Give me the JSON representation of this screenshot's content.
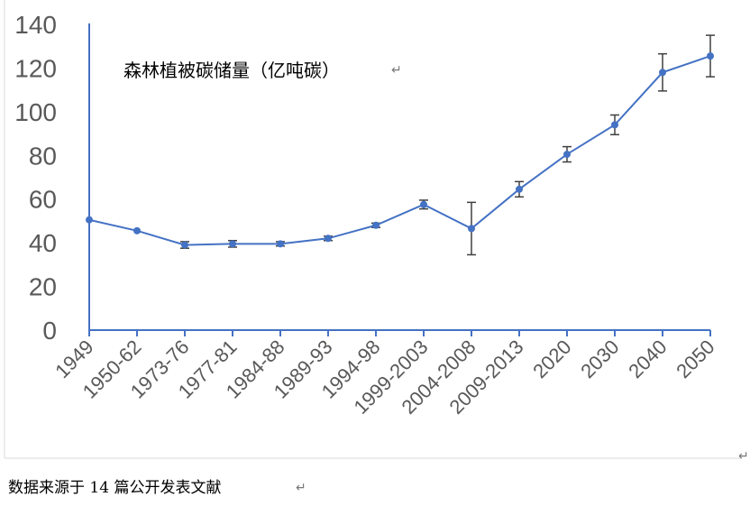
{
  "chart_data": {
    "type": "line",
    "title": "",
    "annotation": "森林植被碳储量（亿吨碳）",
    "xlabel": "",
    "ylabel": "",
    "ylim": [
      0,
      140
    ],
    "yticks": [
      0,
      20,
      40,
      60,
      80,
      100,
      120,
      140
    ],
    "categories": [
      "1949",
      "1950-62",
      "1973-76",
      "1977-81",
      "1984-88",
      "1989-93",
      "1994-98",
      "1999-2003",
      "2004-2008",
      "2009-2013",
      "2020",
      "2030",
      "2040",
      "2050"
    ],
    "series": [
      {
        "values": [
          50.5,
          45.5,
          39,
          39.5,
          39.5,
          42,
          48,
          57.5,
          46.5,
          64.5,
          80.5,
          94,
          118,
          125.5
        ],
        "error": [
          0,
          0,
          1.5,
          1.5,
          1,
          1,
          1,
          2,
          12,
          3.5,
          3.5,
          4.5,
          8.5,
          9.5
        ],
        "color": "#4472c4"
      }
    ],
    "grid": false,
    "legend": "none"
  },
  "caption": "数据来源于 14 篇公开发表文献",
  "marks": {
    "paragraph_mark": "↵"
  }
}
